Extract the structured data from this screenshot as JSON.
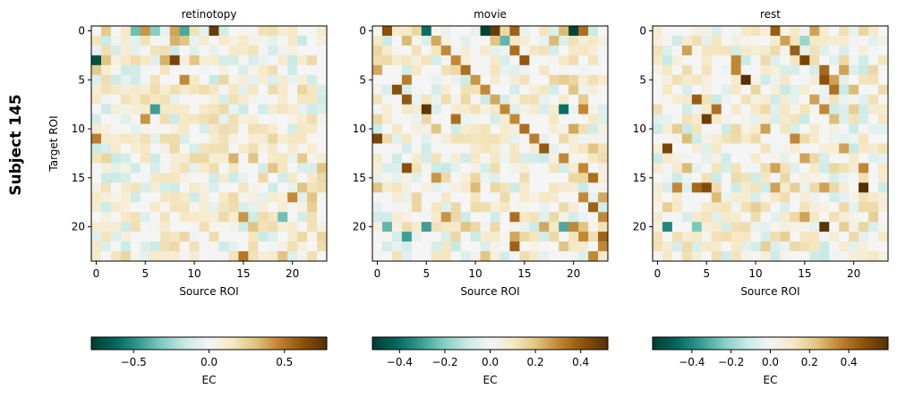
{
  "figure": {
    "suptitle": "Subject 145",
    "colorbar_label": "EC"
  },
  "chart_data": [
    {
      "type": "heatmap",
      "title": "retinotopy",
      "xlabel": "Source ROI",
      "ylabel": "Target ROI",
      "n": 24,
      "xticks": [
        0,
        5,
        10,
        15,
        20
      ],
      "yticks": [
        0,
        5,
        10,
        15,
        20
      ],
      "vlim": [
        -0.78,
        0.78
      ],
      "colorbar_ticks": [
        -0.5,
        0.0,
        0.5
      ],
      "colorbar_tick_labels": [
        "−0.5",
        "0.0",
        "0.5"
      ],
      "highlights": [
        [
          0,
          1,
          0.28
        ],
        [
          0,
          3,
          0.15
        ],
        [
          0,
          4,
          -0.35
        ],
        [
          0,
          5,
          0.42
        ],
        [
          0,
          6,
          -0.3
        ],
        [
          0,
          8,
          0.38
        ],
        [
          0,
          9,
          -0.42
        ],
        [
          0,
          10,
          0.18
        ],
        [
          0,
          12,
          0.72
        ],
        [
          1,
          5,
          0.18
        ],
        [
          1,
          8,
          0.35
        ],
        [
          1,
          9,
          0.3
        ],
        [
          1,
          13,
          0.15
        ],
        [
          1,
          20,
          0.14
        ],
        [
          3,
          0,
          -0.7
        ],
        [
          3,
          1,
          0.3
        ],
        [
          3,
          5,
          0.15
        ],
        [
          3,
          7,
          0.35
        ],
        [
          3,
          8,
          0.68
        ],
        [
          3,
          10,
          0.3
        ],
        [
          4,
          0,
          0.28
        ],
        [
          4,
          4,
          -0.12
        ],
        [
          5,
          1,
          0.2
        ],
        [
          5,
          9,
          0.45
        ],
        [
          6,
          2,
          0.14
        ],
        [
          6,
          6,
          0.2
        ],
        [
          7,
          3,
          0.18
        ],
        [
          7,
          7,
          0.18
        ],
        [
          8,
          6,
          -0.45
        ],
        [
          8,
          11,
          0.15
        ],
        [
          9,
          5,
          0.42
        ],
        [
          9,
          7,
          0.2
        ],
        [
          9,
          16,
          0.1
        ],
        [
          10,
          9,
          0.15
        ],
        [
          10,
          12,
          0.14
        ],
        [
          11,
          0,
          0.48
        ],
        [
          11,
          3,
          0.16
        ],
        [
          11,
          8,
          0.2
        ],
        [
          11,
          13,
          0.18
        ],
        [
          12,
          18,
          0.15
        ],
        [
          12,
          20,
          0.12
        ],
        [
          13,
          14,
          0.35
        ],
        [
          13,
          16,
          0.3
        ],
        [
          13,
          21,
          0.28
        ],
        [
          14,
          12,
          0.2
        ],
        [
          14,
          18,
          0.3
        ],
        [
          14,
          23,
          0.3
        ],
        [
          15,
          17,
          0.22
        ],
        [
          15,
          20,
          0.15
        ],
        [
          16,
          21,
          0.3
        ],
        [
          16,
          23,
          0.2
        ],
        [
          17,
          13,
          0.15
        ],
        [
          17,
          20,
          0.45
        ],
        [
          17,
          22,
          0.3
        ],
        [
          18,
          14,
          0.2
        ],
        [
          18,
          22,
          0.25
        ],
        [
          19,
          15,
          0.42
        ],
        [
          19,
          19,
          -0.35
        ],
        [
          19,
          17,
          0.2
        ],
        [
          20,
          16,
          0.3
        ],
        [
          20,
          18,
          0.2
        ],
        [
          21,
          12,
          0.2
        ],
        [
          21,
          21,
          0.22
        ],
        [
          22,
          16,
          0.2
        ],
        [
          22,
          23,
          0.2
        ],
        [
          23,
          15,
          0.5
        ],
        [
          23,
          19,
          0.3
        ]
      ],
      "seed": 11
    },
    {
      "type": "heatmap",
      "title": "movie",
      "xlabel": "Source ROI",
      "ylabel": "",
      "n": 24,
      "xticks": [
        0,
        5,
        10,
        15,
        20
      ],
      "yticks": [
        0,
        5,
        10,
        15,
        20
      ],
      "vlim": [
        -0.52,
        0.52
      ],
      "colorbar_ticks": [
        -0.4,
        -0.2,
        0.0,
        0.2,
        0.4
      ],
      "colorbar_tick_labels": [
        "−0.4",
        "−0.2",
        "0.0",
        "0.2",
        "0.4"
      ],
      "highlights": [
        [
          0,
          1,
          0.42
        ],
        [
          0,
          4,
          0.15
        ],
        [
          0,
          5,
          -0.4
        ],
        [
          0,
          11,
          -0.5
        ],
        [
          0,
          12,
          0.48
        ],
        [
          0,
          14,
          0.38
        ],
        [
          0,
          19,
          0.22
        ],
        [
          0,
          20,
          -0.5
        ],
        [
          0,
          21,
          0.35
        ],
        [
          1,
          0,
          0.1
        ],
        [
          1,
          3,
          0.22
        ],
        [
          1,
          6,
          0.25
        ],
        [
          1,
          12,
          0.2
        ],
        [
          1,
          13,
          -0.25
        ],
        [
          1,
          18,
          0.22
        ],
        [
          2,
          7,
          0.3
        ],
        [
          2,
          14,
          0.35
        ],
        [
          3,
          8,
          0.3
        ],
        [
          3,
          15,
          0.4
        ],
        [
          4,
          0,
          0.25
        ],
        [
          4,
          9,
          0.35
        ],
        [
          5,
          3,
          0.32
        ],
        [
          5,
          10,
          0.28
        ],
        [
          5,
          19,
          0.18
        ],
        [
          6,
          2,
          0.42
        ],
        [
          6,
          11,
          0.3
        ],
        [
          6,
          20,
          0.2
        ],
        [
          7,
          3,
          0.4
        ],
        [
          7,
          12,
          0.25
        ],
        [
          7,
          21,
          0.18
        ],
        [
          8,
          5,
          0.5
        ],
        [
          8,
          13,
          0.3
        ],
        [
          8,
          19,
          -0.4
        ],
        [
          8,
          21,
          0.3
        ],
        [
          9,
          8,
          0.35
        ],
        [
          9,
          14,
          0.3
        ],
        [
          9,
          0,
          0.15
        ],
        [
          10,
          6,
          0.2
        ],
        [
          10,
          15,
          0.35
        ],
        [
          10,
          20,
          0.25
        ],
        [
          11,
          0,
          0.45
        ],
        [
          11,
          16,
          0.32
        ],
        [
          12,
          17,
          0.4
        ],
        [
          12,
          22,
          0.2
        ],
        [
          13,
          19,
          0.3
        ],
        [
          14,
          3,
          0.42
        ],
        [
          14,
          21,
          0.3
        ],
        [
          15,
          6,
          0.28
        ],
        [
          15,
          22,
          0.35
        ],
        [
          16,
          0,
          0.2
        ],
        [
          16,
          10,
          0.22
        ],
        [
          17,
          21,
          0.3
        ],
        [
          17,
          23,
          0.25
        ],
        [
          18,
          4,
          0.15
        ],
        [
          18,
          22,
          0.38
        ],
        [
          19,
          7,
          0.28
        ],
        [
          19,
          14,
          0.35
        ],
        [
          19,
          23,
          0.3
        ],
        [
          20,
          1,
          -0.25
        ],
        [
          20,
          5,
          -0.3
        ],
        [
          20,
          9,
          0.2
        ],
        [
          20,
          17,
          0.25
        ],
        [
          20,
          19,
          -0.28
        ],
        [
          20,
          20,
          0.3
        ],
        [
          20,
          21,
          0.2
        ],
        [
          21,
          3,
          -0.3
        ],
        [
          21,
          14,
          0.25
        ],
        [
          21,
          21,
          0.3
        ],
        [
          21,
          23,
          0.38
        ],
        [
          22,
          14,
          0.38
        ],
        [
          22,
          19,
          0.2
        ],
        [
          22,
          23,
          0.3
        ],
        [
          23,
          11,
          0.2
        ],
        [
          23,
          22,
          0.3
        ]
      ],
      "seed": 23
    },
    {
      "type": "heatmap",
      "title": "rest",
      "xlabel": "Source ROI",
      "ylabel": "",
      "n": 24,
      "xticks": [
        0,
        5,
        10,
        15,
        20
      ],
      "yticks": [
        0,
        5,
        10,
        15,
        20
      ],
      "vlim": [
        -0.6,
        0.6
      ],
      "colorbar_ticks": [
        -0.4,
        -0.2,
        0.0,
        0.2,
        0.4
      ],
      "colorbar_tick_labels": [
        "−0.4",
        "−0.2",
        "0.0",
        "0.2",
        "0.4"
      ],
      "highlights": [
        [
          0,
          12,
          0.45
        ],
        [
          0,
          16,
          0.3
        ],
        [
          0,
          21,
          0.18
        ],
        [
          1,
          13,
          0.3
        ],
        [
          1,
          15,
          -0.2
        ],
        [
          2,
          3,
          0.3
        ],
        [
          2,
          14,
          0.45
        ],
        [
          3,
          8,
          0.35
        ],
        [
          3,
          15,
          0.52
        ],
        [
          4,
          8,
          0.35
        ],
        [
          4,
          17,
          0.42
        ],
        [
          4,
          19,
          0.3
        ],
        [
          5,
          9,
          0.6
        ],
        [
          5,
          17,
          0.48
        ],
        [
          5,
          18,
          0.3
        ],
        [
          6,
          18,
          0.4
        ],
        [
          6,
          20,
          0.25
        ],
        [
          7,
          4,
          0.45
        ],
        [
          7,
          16,
          0.3
        ],
        [
          8,
          6,
          0.4
        ],
        [
          8,
          17,
          0.35
        ],
        [
          8,
          20,
          0.2
        ],
        [
          9,
          5,
          0.55
        ],
        [
          9,
          18,
          0.25
        ],
        [
          10,
          2,
          0.2
        ],
        [
          10,
          11,
          0.3
        ],
        [
          11,
          3,
          0.25
        ],
        [
          11,
          14,
          0.35
        ],
        [
          12,
          1,
          0.52
        ],
        [
          12,
          19,
          0.3
        ],
        [
          13,
          15,
          0.3
        ],
        [
          14,
          3,
          0.25
        ],
        [
          14,
          12,
          0.3
        ],
        [
          14,
          21,
          0.35
        ],
        [
          16,
          2,
          0.35
        ],
        [
          16,
          5,
          0.5
        ],
        [
          16,
          4,
          0.42
        ],
        [
          16,
          12,
          0.3
        ],
        [
          16,
          14,
          0.2
        ],
        [
          16,
          17,
          0.3
        ],
        [
          16,
          21,
          0.6
        ],
        [
          17,
          6,
          0.25
        ],
        [
          18,
          1,
          0.2
        ],
        [
          18,
          10,
          0.2
        ],
        [
          19,
          15,
          0.3
        ],
        [
          19,
          22,
          0.2
        ],
        [
          20,
          1,
          -0.4
        ],
        [
          20,
          4,
          -0.25
        ],
        [
          20,
          17,
          0.58
        ],
        [
          20,
          19,
          0.2
        ],
        [
          21,
          2,
          0.15
        ],
        [
          21,
          13,
          0.2
        ],
        [
          22,
          11,
          0.2
        ],
        [
          23,
          6,
          0.15
        ]
      ],
      "seed": 37
    }
  ]
}
